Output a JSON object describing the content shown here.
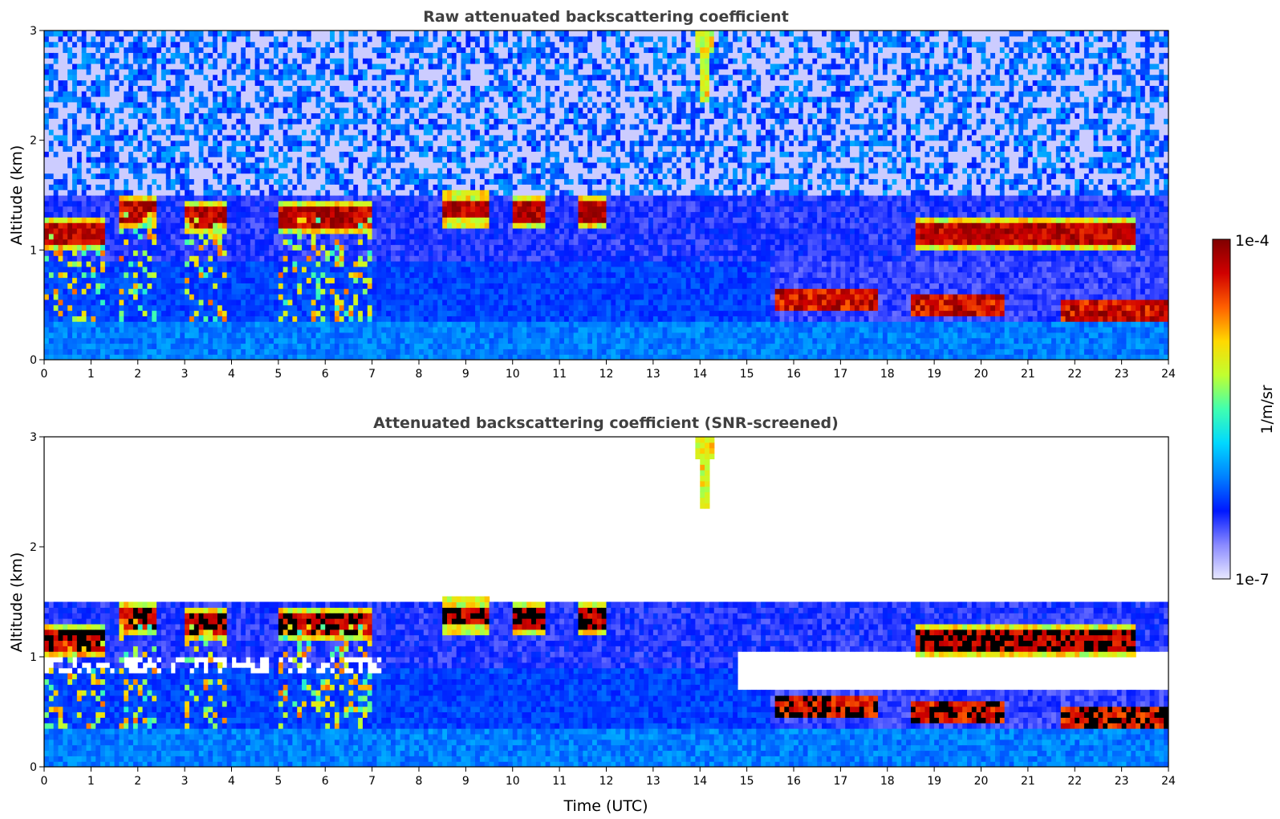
{
  "chart_data": [
    {
      "type": "heatmap",
      "title": "Raw attenuated backscattering coefficient",
      "xlabel": "",
      "ylabel": "Altitude (km)",
      "xlim": [
        0,
        24
      ],
      "ylim": [
        0,
        3
      ],
      "xticks": [
        "0",
        "1",
        "2",
        "3",
        "4",
        "5",
        "6",
        "7",
        "8",
        "9",
        "10",
        "11",
        "12",
        "13",
        "14",
        "15",
        "16",
        "17",
        "18",
        "19",
        "20",
        "21",
        "22",
        "23",
        "24"
      ],
      "yticks": [
        "0",
        "1",
        "2",
        "3"
      ],
      "screened": false,
      "features": {
        "low_cloud_layer": [
          {
            "t0": 0,
            "t1": 1.3,
            "alt": 1.15
          },
          {
            "t0": 1.6,
            "t1": 2.4,
            "alt": 1.35
          },
          {
            "t0": 3.0,
            "t1": 3.9,
            "alt": 1.3
          },
          {
            "t0": 5.0,
            "t1": 7.0,
            "alt": 1.3
          },
          {
            "t0": 8.5,
            "t1": 9.5,
            "alt": 1.38
          },
          {
            "t0": 10.0,
            "t1": 10.7,
            "alt": 1.35
          },
          {
            "t0": 11.4,
            "t1": 12.0,
            "alt": 1.35
          },
          {
            "t0": 18.6,
            "t1": 23.3,
            "alt": 1.15
          }
        ],
        "boundary_layer_top": [
          {
            "t0": 15.6,
            "t1": 17.8,
            "alt": 0.55
          },
          {
            "t0": 18.5,
            "t1": 20.5,
            "alt": 0.5
          },
          {
            "t0": 21.7,
            "t1": 24,
            "alt": 0.45
          }
        ],
        "plume": {
          "t": 14.1,
          "alt_min": 2.3,
          "alt_max": 3.0
        }
      }
    },
    {
      "type": "heatmap",
      "title": "Attenuated backscattering coefficient (SNR-screened)",
      "xlabel": "Time (UTC)",
      "ylabel": "Altitude (km)",
      "xlim": [
        0,
        24
      ],
      "ylim": [
        0,
        3
      ],
      "xticks": [
        "0",
        "1",
        "2",
        "3",
        "4",
        "5",
        "6",
        "7",
        "8",
        "9",
        "10",
        "11",
        "12",
        "13",
        "14",
        "15",
        "16",
        "17",
        "18",
        "19",
        "20",
        "21",
        "22",
        "23",
        "24"
      ],
      "yticks": [
        "0",
        "1",
        "2",
        "3"
      ],
      "screened": true
    }
  ],
  "colorbar": {
    "label": "1/m/sr",
    "max_label": "1e-4",
    "min_label": "1e-7",
    "colors": [
      "#e8e8ff",
      "#8a8aff",
      "#0018ff",
      "#0080ff",
      "#00d8ff",
      "#40ffb0",
      "#c0ff30",
      "#ffd800",
      "#ff6000",
      "#d00000",
      "#800000"
    ]
  }
}
